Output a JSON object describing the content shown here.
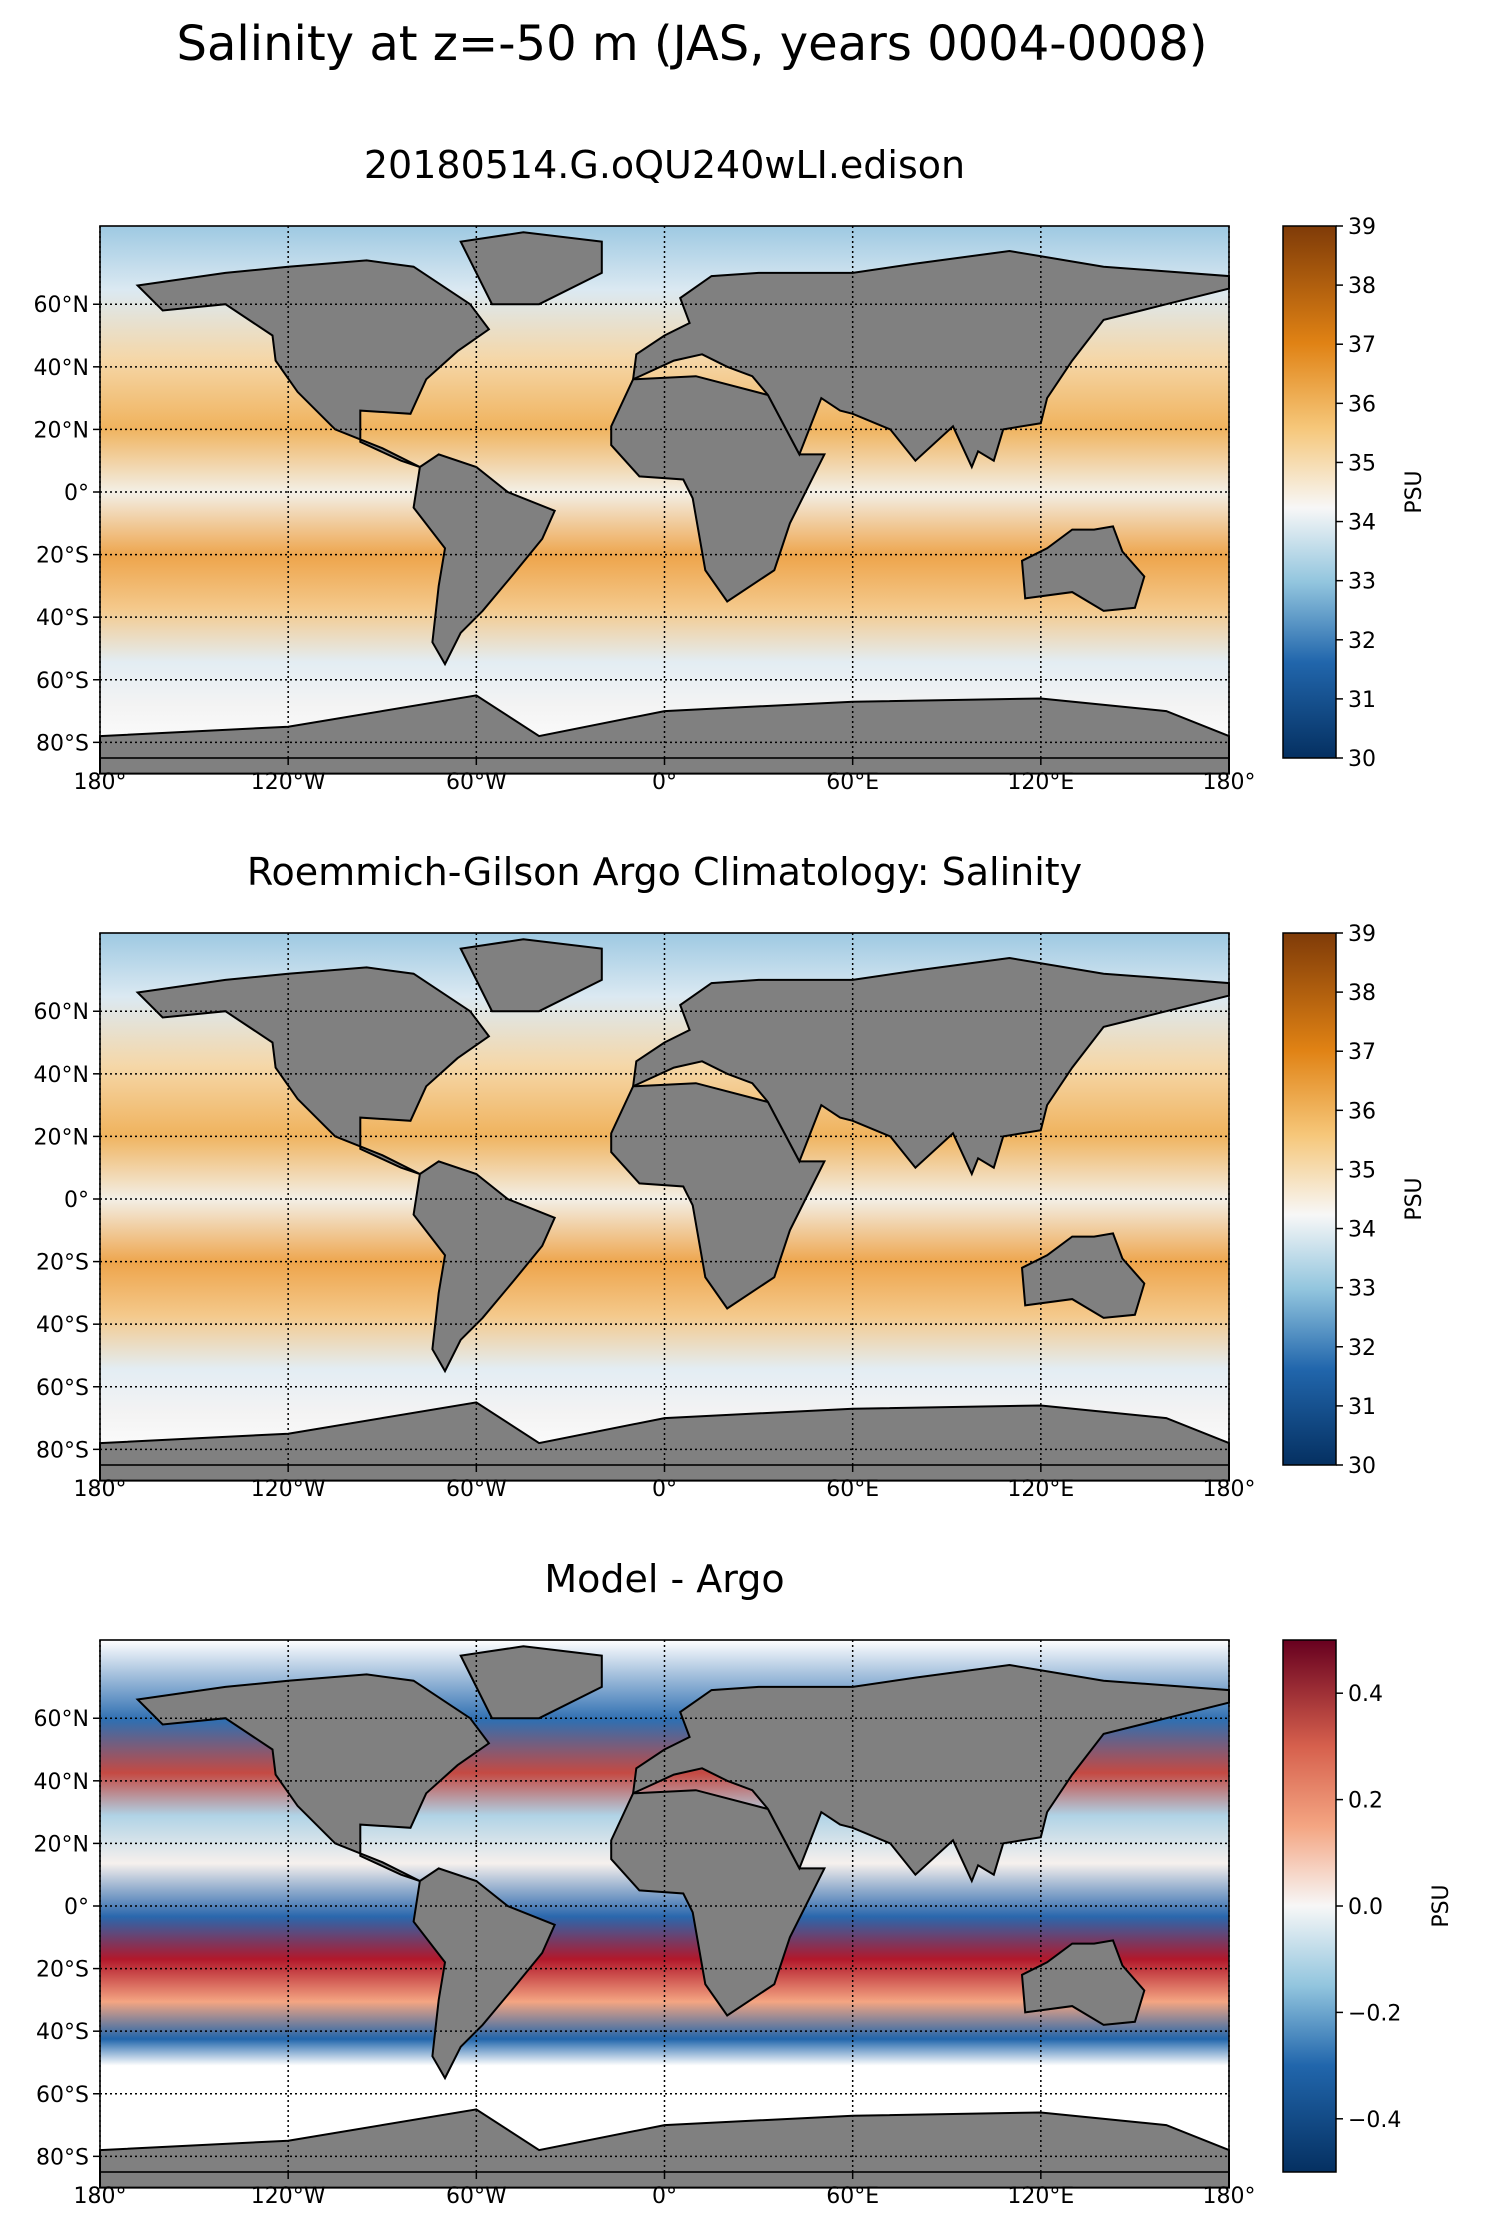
{
  "figure": {
    "suptitle": "Salinity at z=-50 m (JAS, years 0004-0008)"
  },
  "axes": {
    "lon_ticks": [
      "180°",
      "120°W",
      "60°W",
      "0°",
      "60°E",
      "120°E",
      "180°"
    ],
    "lon_values": [
      -180,
      -120,
      -60,
      0,
      60,
      120,
      180
    ],
    "lat_ticks": [
      "60°N",
      "40°N",
      "20°N",
      "0°",
      "20°S",
      "40°S",
      "60°S",
      "80°S"
    ],
    "lat_values": [
      60,
      40,
      20,
      0,
      -20,
      -40,
      -60,
      -80
    ],
    "lat_range": [
      -85,
      85
    ],
    "lon_range": [
      -180,
      180
    ],
    "grid": "dotted",
    "land_color": "#808080"
  },
  "chart_data": [
    {
      "type": "heatmap",
      "title": "20180514.G.oQU240wLI.edison",
      "colormap": "orange-white-blue (BrBG-like)",
      "colorbar": {
        "label": "PSU",
        "range": [
          30,
          39
        ],
        "ticks": [
          "39",
          "38",
          "37",
          "36",
          "35",
          "34",
          "33",
          "32",
          "31",
          "30"
        ],
        "tick_values": [
          39,
          38,
          37,
          36,
          35,
          34,
          33,
          32,
          31,
          30
        ]
      }
    },
    {
      "type": "heatmap",
      "title": "Roemmich-Gilson Argo Climatology: Salinity",
      "colormap": "orange-white-blue (BrBG-like)",
      "colorbar": {
        "label": "PSU",
        "range": [
          30,
          39
        ],
        "ticks": [
          "39",
          "38",
          "37",
          "36",
          "35",
          "34",
          "33",
          "32",
          "31",
          "30"
        ],
        "tick_values": [
          39,
          38,
          37,
          36,
          35,
          34,
          33,
          32,
          31,
          30
        ]
      }
    },
    {
      "type": "heatmap",
      "title": "Model - Argo",
      "colormap": "red-white-blue (RdBu_r)",
      "colorbar": {
        "label": "PSU",
        "range": [
          -0.5,
          0.5
        ],
        "ticks": [
          "0.4",
          "0.2",
          "0.0",
          "−0.2",
          "−0.4"
        ],
        "tick_values": [
          0.4,
          0.2,
          0.0,
          -0.2,
          -0.4
        ]
      }
    }
  ],
  "colors": {
    "salinity_high": "#7f3b08",
    "salinity_mid": "#f7f7f7",
    "salinity_low": "#053061",
    "diff_high": "#67001f",
    "diff_low": "#053061"
  }
}
